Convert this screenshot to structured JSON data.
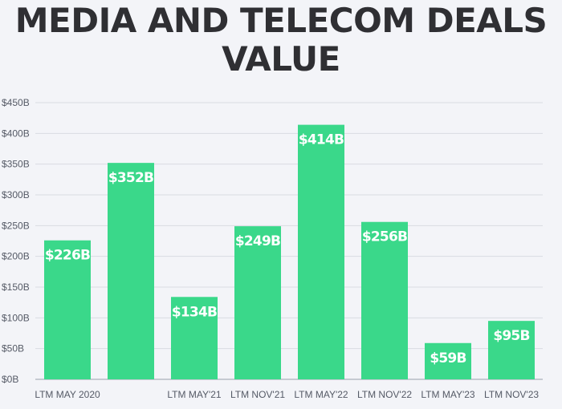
{
  "title": "MEDIA AND TELECOM DEALS VALUE",
  "colors": {
    "bar": "#3ad88a",
    "grid": "#d9dbe2",
    "axis": "#9aa0ad",
    "background": "#f3f4f8",
    "title": "#2f2f33"
  },
  "chart_data": {
    "type": "bar",
    "title": "MEDIA AND TELECOM DEALS VALUE",
    "xlabel": "",
    "ylabel": "",
    "ylim": [
      0,
      450
    ],
    "ytick_values": [
      0,
      50,
      100,
      150,
      200,
      250,
      300,
      350,
      400,
      450
    ],
    "ytick_labels": [
      "$0B",
      "$50B",
      "$100B",
      "$150B",
      "$200B",
      "$250B",
      "$300B",
      "$350B",
      "$400B",
      "$450B"
    ],
    "grid": true,
    "categories": [
      "LTM MAY 2020",
      "",
      "LTM MAY'21",
      "LTM NOV'21",
      "LTM MAY'22",
      "LTM NOV'22",
      "LTM MAY'23",
      "LTM NOV'23"
    ],
    "values": [
      226,
      352,
      134,
      249,
      414,
      256,
      59,
      95
    ],
    "data_labels": [
      "$226B",
      "$352B",
      "$134B",
      "$249B",
      "$414B",
      "$256B",
      "$59B",
      "$95B"
    ]
  }
}
